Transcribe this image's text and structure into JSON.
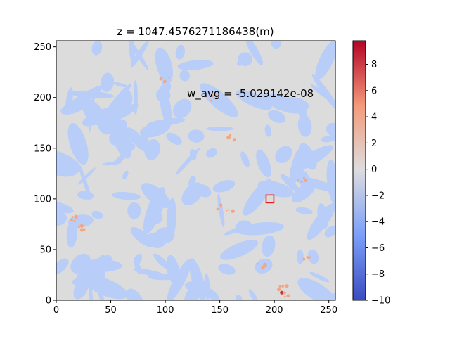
{
  "chart_data": {
    "type": "heatmap",
    "title": "z = 1047.4576271186438(m)",
    "annotation": "w_avg = -5.029142e-08",
    "annotation_at": {
      "x": 120,
      "y": 200
    },
    "xlim": [
      0,
      256
    ],
    "ylim": [
      0,
      256
    ],
    "x_ticks": [
      0,
      50,
      100,
      150,
      200,
      250
    ],
    "y_ticks": [
      0,
      50,
      100,
      150,
      200,
      250
    ],
    "marker": {
      "shape": "square",
      "x": 196,
      "y": 100,
      "color": "#e41a1c"
    },
    "colorbar": {
      "colormap": "coolwarm",
      "range": [
        -10,
        9.8
      ],
      "ticks": [
        -10,
        -8,
        -6,
        -4,
        -2,
        0,
        2,
        4,
        6,
        8
      ]
    },
    "colors": {
      "background_gray": "#dcdcdc",
      "negative_blue": "#b8cdf7",
      "positive_red": "#f4a583",
      "strong_red": "#c43a33"
    }
  }
}
